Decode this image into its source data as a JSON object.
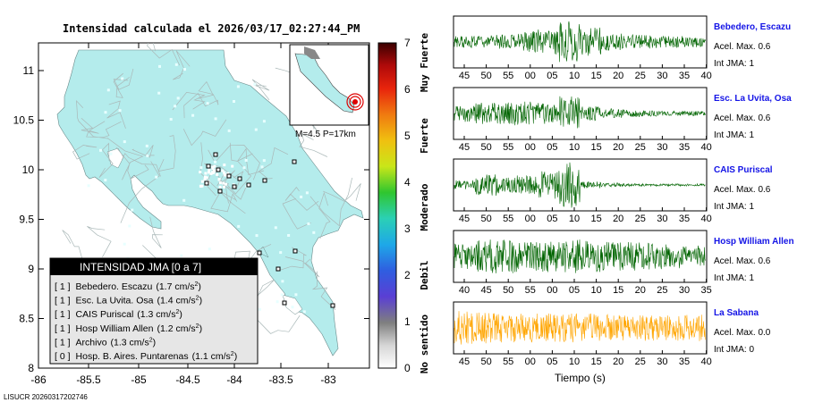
{
  "title": "Intensidad calculada el 2026/03/17_02:27:44_PM",
  "footer_id": "LISUCR 20260317202746",
  "map": {
    "x_ticks": [
      "-86",
      "-85.5",
      "-85",
      "-84.5",
      "-84",
      "-83.5",
      "-83"
    ],
    "y_ticks": [
      "11",
      "10.5",
      "10",
      "9.5",
      "9",
      "8.5",
      "8"
    ],
    "inset_label": "M=4.5 P=17km",
    "land_color": "#b4ecec",
    "ocean_color": "#ffffff"
  },
  "legend_box": {
    "title": "INTENSIDAD JMA [0 a 7]",
    "rows": [
      {
        "jma": "[ 1 ]",
        "name": "Bebedero. Escazu",
        "accel": "1.7",
        "unit": "cm/s",
        "exp": "2"
      },
      {
        "jma": "[ 1 ]",
        "name": "Esc. La Uvita. Osa",
        "accel": "1.4",
        "unit": "cm/s",
        "exp": "2"
      },
      {
        "jma": "[ 1 ]",
        "name": "CAIS Puriscal",
        "accel": "1.3",
        "unit": "cm/s",
        "exp": "2"
      },
      {
        "jma": "[ 1 ]",
        "name": "Hosp William Allen",
        "accel": "1.2",
        "unit": "cm/s",
        "exp": "2"
      },
      {
        "jma": "[ 1 ]",
        "name": "Archivo",
        "accel": "1.3",
        "unit": "cm/s",
        "exp": "2"
      },
      {
        "jma": "[ 0 ]",
        "name": "Hosp. B. Aires. Puntarenas",
        "accel": "1.1",
        "unit": "cm/s",
        "exp": "2"
      }
    ]
  },
  "colorbar": {
    "ticks": [
      "0",
      "1",
      "2",
      "3",
      "4",
      "5",
      "6",
      "7"
    ],
    "categories": [
      "No sentido",
      "Debil",
      "Moderado",
      "Fuerte",
      "Muy Fuerte"
    ]
  },
  "xlabel": "Tiempo (s)",
  "chart_data": {
    "type": "line",
    "title": "Intensidad calculada el 2026/03/17_02:27:44_PM",
    "xlabel": "Tiempo (s)",
    "series": [
      {
        "name": "Bebedero, Escazu",
        "accel_label": "Acel. Max. 0.6",
        "jma_label": "Int JMA: 1",
        "color": "#006400",
        "x_ticks": [
          "45",
          "50",
          "55",
          "00",
          "05",
          "10",
          "15",
          "20",
          "25",
          "30",
          "35",
          "40"
        ],
        "envelope": [
          0.25,
          0.28,
          0.3,
          0.45,
          0.55,
          0.9,
          0.6,
          0.35,
          0.3,
          0.28,
          0.25,
          0.22
        ]
      },
      {
        "name": "Esc. La Uvita, Osa",
        "accel_label": "Acel. Max. 0.6",
        "jma_label": "Int JMA: 1",
        "color": "#006400",
        "x_ticks": [
          "45",
          "50",
          "55",
          "00",
          "05",
          "10",
          "15",
          "20",
          "25",
          "30",
          "35",
          "40"
        ],
        "envelope": [
          0.35,
          0.45,
          0.5,
          0.5,
          0.45,
          0.75,
          0.3,
          0.2,
          0.15,
          0.12,
          0.1,
          0.1
        ]
      },
      {
        "name": "CAIS Puriscal",
        "accel_label": "Acel. Max. 0.6",
        "jma_label": "Int JMA: 1",
        "color": "#006400",
        "x_ticks": [
          "45",
          "50",
          "55",
          "00",
          "05",
          "10",
          "15",
          "20",
          "25",
          "30",
          "35",
          "40"
        ],
        "envelope": [
          0.2,
          0.45,
          0.35,
          0.4,
          0.6,
          0.95,
          0.15,
          0.08,
          0.06,
          0.05,
          0.05,
          0.05
        ]
      },
      {
        "name": "Hosp William Allen",
        "accel_label": "Acel. Max. 0.6",
        "jma_label": "Int JMA: 1",
        "color": "#006400",
        "x_ticks": [
          "40",
          "45",
          "50",
          "55",
          "00",
          "05",
          "10",
          "15",
          "20",
          "25",
          "30",
          "35"
        ],
        "envelope": [
          0.55,
          0.7,
          0.7,
          0.6,
          0.65,
          0.7,
          0.65,
          0.6,
          0.6,
          0.55,
          0.5,
          0.45
        ]
      },
      {
        "name": "La Sabana",
        "accel_label": "Acel. Max. 0.0",
        "jma_label": "Int JMA: 0",
        "color": "#ffa500",
        "x_ticks": [
          "45",
          "50",
          "55",
          "00",
          "05",
          "10",
          "15",
          "20",
          "25",
          "30",
          "35",
          "40"
        ],
        "envelope": [
          0.7,
          0.65,
          0.6,
          0.6,
          0.6,
          0.6,
          0.6,
          0.55,
          0.55,
          0.55,
          0.55,
          0.55
        ]
      }
    ]
  }
}
